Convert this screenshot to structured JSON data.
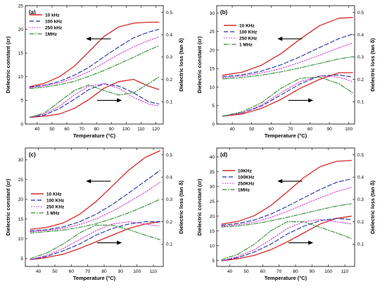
{
  "chart_data": [
    {
      "panel": "(a)",
      "type": "line",
      "xlabel": "Temperature (°C)",
      "ylabel": "Dielectric constant (εr)",
      "y2label": "Dielectric loss (tan δ)",
      "xlim": [
        32,
        125
      ],
      "ylim": [
        0,
        25
      ],
      "y2lim": [
        0.0,
        0.53
      ],
      "xticks": [
        "40",
        "50",
        "60",
        "70",
        "80",
        "90",
        "100",
        "110",
        "120"
      ],
      "yticks": [
        "0",
        "5",
        "10",
        "15",
        "20",
        "25"
      ],
      "y2ticks": [
        "0.1",
        "0.2",
        "0.3",
        "0.4",
        "0.5"
      ],
      "legend": [
        "10 kHz",
        "100 kHz",
        "250 kHz",
        "1MHz"
      ],
      "legend_position": "top-left",
      "arrows": [
        "left (upper curves → left axis)",
        "right (lower curves → right axis)"
      ],
      "x": [
        35,
        45,
        55,
        65,
        75,
        85,
        95,
        105,
        115,
        122
      ],
      "series": [
        {
          "name": "10 kHz",
          "axis": "left",
          "values": [
            7.9,
            8.6,
            10.0,
            12.2,
            15.3,
            18.5,
            20.5,
            21.3,
            21.5,
            21.5
          ]
        },
        {
          "name": "100 kHz",
          "axis": "left",
          "values": [
            7.8,
            8.2,
            9.0,
            10.3,
            12.0,
            14.2,
            16.3,
            18.2,
            19.4,
            20.0
          ]
        },
        {
          "name": "250 kHz",
          "axis": "left",
          "values": [
            7.7,
            8.1,
            8.7,
            9.7,
            11.1,
            12.9,
            14.7,
            16.3,
            17.6,
            18.4
          ]
        },
        {
          "name": "1MHz",
          "axis": "left",
          "values": [
            7.5,
            7.8,
            8.3,
            9.0,
            10.1,
            11.3,
            12.7,
            14.1,
            15.6,
            16.5
          ]
        },
        {
          "name": "10 kHz",
          "axis": "right",
          "values": [
            0.03,
            0.035,
            0.045,
            0.07,
            0.11,
            0.16,
            0.19,
            0.2,
            0.17,
            0.155
          ]
        },
        {
          "name": "100 kHz",
          "axis": "right",
          "values": [
            0.03,
            0.04,
            0.07,
            0.11,
            0.155,
            0.18,
            0.17,
            0.14,
            0.1,
            0.09
          ]
        },
        {
          "name": "250 kHz",
          "axis": "right",
          "values": [
            0.03,
            0.045,
            0.08,
            0.13,
            0.17,
            0.18,
            0.16,
            0.12,
            0.09,
            0.08
          ]
        },
        {
          "name": "1MHz",
          "axis": "right",
          "values": [
            0.03,
            0.05,
            0.1,
            0.15,
            0.175,
            0.15,
            0.13,
            0.14,
            0.18,
            0.21
          ]
        }
      ]
    },
    {
      "panel": "(b)",
      "type": "line",
      "xlabel": "Temperature (°C)",
      "ylabel": "Dielectric constant (εr)",
      "y2label": "Dielectric loss (tan δ)",
      "xlim": [
        32,
        103
      ],
      "ylim": [
        0,
        32
      ],
      "y2lim": [
        0.0,
        0.53
      ],
      "xticks": [
        "40",
        "50",
        "60",
        "70",
        "80",
        "90",
        "100"
      ],
      "yticks": [
        "0",
        "5",
        "10",
        "15",
        "20",
        "25",
        "30"
      ],
      "y2ticks": [
        "0.1",
        "0.2",
        "0.3",
        "0.4",
        "0.5"
      ],
      "legend": [
        "10 KHz",
        "100 KHz",
        "250 KHz",
        "1 MHz"
      ],
      "legend_position": "left",
      "arrows": [
        "left (upper curves → left axis)",
        "right (lower curves → right axis)"
      ],
      "x": [
        35,
        45,
        55,
        65,
        75,
        85,
        95,
        102
      ],
      "series": [
        {
          "name": "10 KHz",
          "axis": "left",
          "values": [
            13.2,
            14.0,
            15.9,
            19.0,
            23.0,
            26.6,
            28.6,
            28.8
          ]
        },
        {
          "name": "100 KHz",
          "axis": "left",
          "values": [
            12.8,
            13.3,
            14.3,
            16.0,
            18.2,
            20.7,
            23.1,
            24.3
          ]
        },
        {
          "name": "250 KHz",
          "axis": "left",
          "values": [
            12.5,
            13.0,
            13.8,
            15.0,
            16.7,
            18.6,
            20.6,
            21.9
          ]
        },
        {
          "name": "1 MHz",
          "axis": "left",
          "values": [
            12.2,
            12.6,
            13.2,
            14.1,
            15.2,
            16.4,
            17.6,
            18.2
          ]
        },
        {
          "name": "10 KHz",
          "axis": "right",
          "values": [
            0.035,
            0.045,
            0.07,
            0.11,
            0.16,
            0.2,
            0.23,
            0.23
          ]
        },
        {
          "name": "100 KHz",
          "axis": "right",
          "values": [
            0.035,
            0.05,
            0.08,
            0.13,
            0.18,
            0.215,
            0.22,
            0.21
          ]
        },
        {
          "name": "250 KHz",
          "axis": "right",
          "values": [
            0.035,
            0.05,
            0.085,
            0.14,
            0.19,
            0.215,
            0.21,
            0.19
          ]
        },
        {
          "name": "1 MHz",
          "axis": "right",
          "values": [
            0.035,
            0.055,
            0.095,
            0.16,
            0.205,
            0.21,
            0.18,
            0.14
          ]
        }
      ]
    },
    {
      "panel": "(c)",
      "type": "line",
      "xlabel": "Temperature (°C)",
      "ylabel": "Dielectric constant (εr)",
      "y2label": "Dielectric loss (tan δ)",
      "xlim": [
        32,
        116
      ],
      "ylim": [
        3,
        33
      ],
      "y2lim": [
        0.0,
        0.53
      ],
      "xticks": [
        "40",
        "50",
        "60",
        "70",
        "80",
        "90",
        "100",
        "110"
      ],
      "yticks": [
        "5",
        "10",
        "15",
        "20",
        "25",
        "30"
      ],
      "y2ticks": [
        "0.1",
        "0.2",
        "0.3",
        "0.4",
        "0.5"
      ],
      "legend": [
        "10 KHz",
        "100 KHz",
        "250 KHz",
        "1 MHz"
      ],
      "legend_position": "left",
      "arrows": [
        "left (upper curves → left axis)",
        "right (lower curves → right axis)"
      ],
      "x": [
        35,
        45,
        55,
        65,
        75,
        85,
        95,
        105,
        114
      ],
      "series": [
        {
          "name": "10 KHz",
          "axis": "left",
          "values": [
            12.4,
            12.9,
            14.0,
            16.2,
            19.4,
            23.4,
            27.4,
            30.6,
            32.3
          ]
        },
        {
          "name": "100 KHz",
          "axis": "left",
          "values": [
            12.0,
            12.3,
            13.0,
            14.3,
            16.2,
            18.7,
            21.6,
            24.6,
            27.3
          ]
        },
        {
          "name": "250 KHz",
          "axis": "left",
          "values": [
            11.8,
            12.1,
            12.6,
            13.6,
            15.0,
            17.0,
            19.3,
            21.8,
            24.3
          ]
        },
        {
          "name": "1 MHz",
          "axis": "left",
          "values": [
            11.5,
            11.8,
            12.2,
            12.9,
            13.8,
            15.1,
            16.6,
            18.3,
            20.0
          ]
        },
        {
          "name": "10 KHz",
          "axis": "right",
          "values": [
            0.03,
            0.04,
            0.055,
            0.08,
            0.11,
            0.14,
            0.17,
            0.19,
            0.2
          ]
        },
        {
          "name": "100 KHz",
          "axis": "right",
          "values": [
            0.03,
            0.045,
            0.07,
            0.1,
            0.14,
            0.17,
            0.19,
            0.2,
            0.2
          ]
        },
        {
          "name": "250 KHz",
          "axis": "right",
          "values": [
            0.03,
            0.05,
            0.08,
            0.12,
            0.16,
            0.19,
            0.2,
            0.19,
            0.18
          ]
        },
        {
          "name": "1 MHz",
          "axis": "right",
          "values": [
            0.035,
            0.06,
            0.1,
            0.15,
            0.185,
            0.185,
            0.165,
            0.14,
            0.12
          ]
        }
      ]
    },
    {
      "panel": "(d)",
      "type": "line",
      "xlabel": "Temperature (°C)",
      "ylabel": "Dielectric constant (εr)",
      "y2label": "Dielectric loss (tan δ)",
      "xlim": [
        32,
        116
      ],
      "ylim": [
        3,
        43
      ],
      "y2lim": [
        0.0,
        0.53
      ],
      "xticks": [
        "40",
        "50",
        "60",
        "70",
        "80",
        "90",
        "100",
        "110"
      ],
      "yticks": [
        "5",
        "10",
        "15",
        "20",
        "25",
        "30",
        "35",
        "40"
      ],
      "y2ticks": [
        "0.1",
        "0.2",
        "0.3",
        "0.4",
        "0.5"
      ],
      "legend": [
        "10KHz",
        "100KHz",
        "250KHz",
        "1MHz"
      ],
      "legend_position": "left",
      "arrows": [
        "left (upper curves → left axis)",
        "right (lower curves → right axis)"
      ],
      "x": [
        35,
        45,
        55,
        65,
        75,
        85,
        95,
        105,
        114
      ],
      "series": [
        {
          "name": "10KHz",
          "axis": "left",
          "values": [
            17.3,
            18.2,
            20.2,
            23.6,
            28.2,
            33.0,
            36.7,
            38.5,
            38.8
          ]
        },
        {
          "name": "100KHz",
          "axis": "left",
          "values": [
            16.9,
            17.5,
            18.7,
            20.7,
            23.3,
            26.2,
            29.0,
            31.4,
            32.6
          ]
        },
        {
          "name": "250KHz",
          "axis": "left",
          "values": [
            16.6,
            17.1,
            18.0,
            19.6,
            21.6,
            23.9,
            26.2,
            28.3,
            29.7
          ]
        },
        {
          "name": "1MHz",
          "axis": "left",
          "values": [
            16.3,
            16.7,
            17.4,
            18.4,
            19.6,
            20.9,
            22.2,
            23.4,
            24.2
          ]
        },
        {
          "name": "10KHz",
          "axis": "right",
          "values": [
            0.025,
            0.035,
            0.05,
            0.075,
            0.11,
            0.15,
            0.19,
            0.215,
            0.225
          ]
        },
        {
          "name": "100KHz",
          "axis": "right",
          "values": [
            0.025,
            0.04,
            0.065,
            0.1,
            0.145,
            0.18,
            0.205,
            0.215,
            0.21
          ]
        },
        {
          "name": "250KHz",
          "axis": "right",
          "values": [
            0.025,
            0.045,
            0.075,
            0.12,
            0.17,
            0.2,
            0.21,
            0.2,
            0.19
          ]
        },
        {
          "name": "1MHz",
          "axis": "right",
          "values": [
            0.03,
            0.055,
            0.1,
            0.16,
            0.2,
            0.2,
            0.175,
            0.15,
            0.125
          ]
        }
      ]
    }
  ],
  "style": {
    "series_colors": [
      "#d42a2a",
      "#1f2fa0",
      "#d240d2",
      "#2f8a2f"
    ],
    "series_dash": [
      "",
      "6,3",
      "1.5,2",
      "6,2,1.5,2"
    ]
  }
}
